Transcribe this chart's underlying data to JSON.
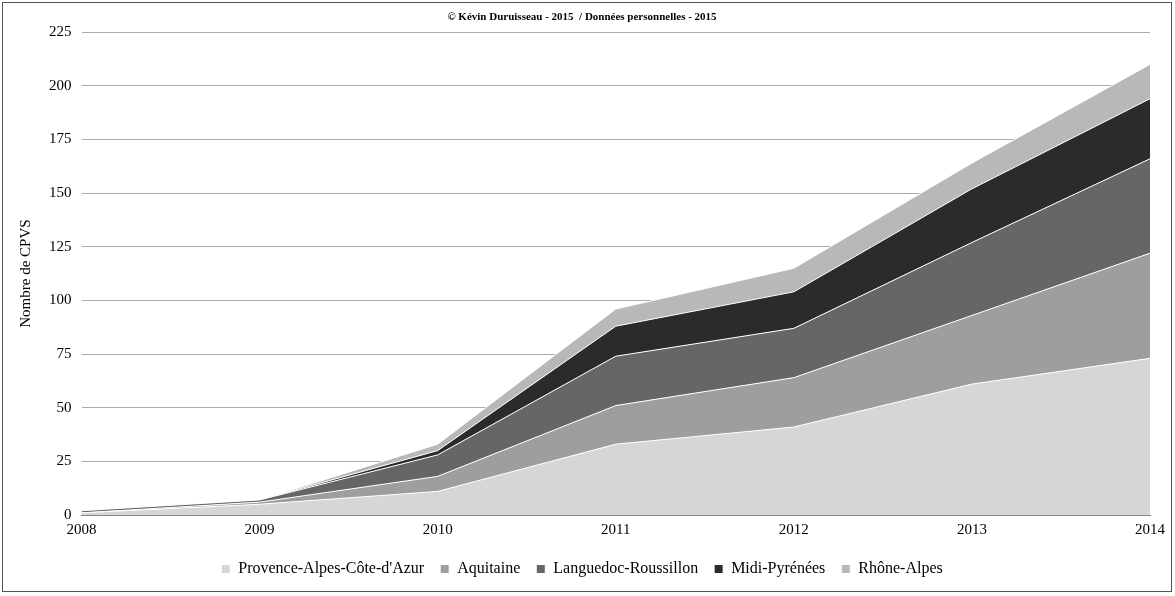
{
  "chart_data": {
    "type": "area",
    "title": "© Kévin Duruisseau - 2015  / Données personnelles - 2015",
    "ylabel": "Nombre de CPVS",
    "categories": [
      "2008",
      "2009",
      "2010",
      "2011",
      "2012",
      "2013",
      "2014"
    ],
    "stacked": true,
    "series": [
      {
        "name": "Provence-Alpes-Côte-d'Azur",
        "color": "#d6d6d6",
        "values": [
          1,
          5,
          11,
          33,
          41,
          61,
          73
        ]
      },
      {
        "name": "Aquitaine",
        "color": "#9e9e9e",
        "values": [
          0,
          1,
          7,
          18,
          23,
          32,
          49
        ]
      },
      {
        "name": "Languedoc-Roussillon",
        "color": "#666666",
        "values": [
          1,
          1,
          10,
          23,
          23,
          34,
          44
        ]
      },
      {
        "name": "Midi-Pyrénées",
        "color": "#2b2b2b",
        "values": [
          0,
          0,
          2,
          14,
          17,
          25,
          28
        ]
      },
      {
        "name": "Rhône-Alpes",
        "color": "#b8b8b8",
        "values": [
          0,
          0,
          3,
          8,
          11,
          12,
          16
        ]
      }
    ],
    "ylim": [
      0,
      225
    ],
    "yticks": [
      0,
      25,
      50,
      75,
      100,
      125,
      150,
      175,
      200,
      225
    ],
    "grid": "y",
    "legend": "bottom"
  }
}
